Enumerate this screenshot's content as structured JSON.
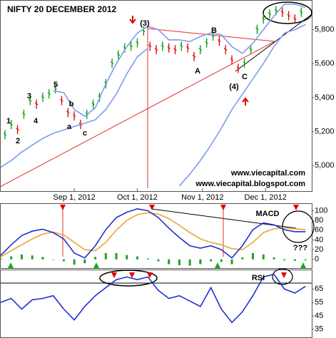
{
  "chart_data": [
    {
      "type": "stock",
      "title": "NIFTY 20 DECEMBER 2012",
      "xlim": [
        0,
        148
      ],
      "xticks": [
        {
          "value": 35,
          "label": "Sep 1, 2012"
        },
        {
          "value": 65,
          "label": "Oct 1, 2012"
        },
        {
          "value": 96,
          "label": "Nov 1, 2012"
        },
        {
          "value": 126,
          "label": "Dec 1, 2012"
        }
      ],
      "ylim": [
        4850,
        5966
      ],
      "yticks": [
        {
          "value": 5000,
          "label": "5,000"
        },
        {
          "value": 5200,
          "label": "5,200"
        },
        {
          "value": 5400,
          "label": "5,400"
        },
        {
          "value": 5600,
          "label": "5,600"
        },
        {
          "value": 5800,
          "label": "5,800"
        }
      ],
      "series": [
        {
          "up_color": "#00a000",
          "down_color": "#e00000",
          "x": [
            2,
            5,
            8,
            11,
            14,
            17,
            20,
            23,
            26,
            29,
            32,
            35,
            38,
            41,
            44,
            47,
            50,
            53,
            56,
            59,
            62,
            65,
            68,
            71,
            74,
            77,
            80,
            83,
            86,
            89,
            92,
            95,
            98,
            101,
            104,
            107,
            110,
            113,
            116,
            119,
            122,
            125,
            128,
            131,
            134,
            137,
            140,
            143
          ],
          "values": [
            5180,
            5240,
            5210,
            5300,
            5380,
            5360,
            5400,
            5420,
            5450,
            5380,
            5310,
            5290,
            5240,
            5300,
            5360,
            5400,
            5480,
            5600,
            5650,
            5690,
            5700,
            5720,
            5790,
            5700,
            5680,
            5700,
            5690,
            5680,
            5700,
            5690,
            5640,
            5680,
            5720,
            5760,
            5730,
            5680,
            5620,
            5570,
            5600,
            5680,
            5800,
            5860,
            5890,
            5910,
            5900,
            5880,
            5860,
            5900
          ]
        },
        {
          "color": "#7f9cf0",
          "x": [
            0,
            5,
            10,
            15,
            20,
            25,
            30,
            35,
            40,
            45,
            50,
            55,
            60,
            65,
            70,
            75,
            80,
            85,
            90,
            95,
            100,
            105,
            110,
            115,
            120,
            125,
            130,
            135,
            140,
            145
          ],
          "values": [
            null,
            null,
            null,
            null,
            null,
            5440,
            5430,
            5330,
            5290,
            5340,
            5480,
            5600,
            5700,
            5780,
            5820,
            5800,
            5740,
            5740,
            5730,
            5760,
            5780,
            5770,
            5700,
            5660,
            5720,
            5800,
            5880,
            5950,
            5950,
            5930
          ]
        },
        {
          "color": "#7f9cf0",
          "x": [
            0,
            5,
            10,
            15,
            20,
            25,
            30,
            35,
            40,
            45,
            50,
            55,
            60,
            65,
            70,
            75,
            80,
            85,
            90,
            95,
            100,
            105,
            110,
            115,
            120,
            125,
            130,
            135,
            140,
            145
          ],
          "values": [
            4990,
            5030,
            5080,
            5120,
            5160,
            5190,
            5210,
            5230,
            5250,
            5270,
            5330,
            5420,
            5540,
            5640,
            5690,
            null,
            null,
            4880,
            4950,
            5030,
            5120,
            5220,
            5330,
            5420,
            5510,
            5600,
            5700,
            5780,
            5800,
            5830
          ]
        }
      ],
      "annotations": [
        {
          "text": "(3)",
          "color": "#e00000"
        },
        {
          "text": "B",
          "color": "#e00000"
        },
        {
          "text": "A",
          "color": "#e00000"
        },
        {
          "text": "(4)",
          "color": "#e00000"
        },
        {
          "text": "C",
          "color": "#e00000"
        },
        {
          "text": "1",
          "color": "#e00000"
        },
        {
          "text": "2",
          "color": "#2050d0"
        },
        {
          "text": "3",
          "color": "#2050d0"
        },
        {
          "text": "4",
          "color": "#2050d0"
        },
        {
          "text": "5",
          "color": "#2050d0"
        },
        {
          "text": "a",
          "color": "#2050d0"
        },
        {
          "text": "b",
          "color": "#2050d0"
        },
        {
          "text": "c",
          "color": "#2050d0"
        },
        {
          "text": "www.viecapital.com",
          "color": "#000000"
        },
        {
          "text": "www.viecapital.blogspot.com",
          "color": "#000000"
        }
      ]
    },
    {
      "type": "macd",
      "xlim": [
        0,
        148
      ],
      "ylim": [
        -18,
        114
      ],
      "yticks": [
        0,
        20,
        40,
        60,
        80,
        100
      ],
      "x": [
        0,
        5,
        10,
        15,
        20,
        25,
        30,
        35,
        40,
        45,
        50,
        55,
        60,
        65,
        70,
        75,
        80,
        85,
        90,
        95,
        100,
        105,
        110,
        115,
        120,
        125,
        130,
        135,
        140,
        145
      ],
      "series": [
        {
          "style": "bar",
          "color": "#22a022",
          "values": [
            2,
            6,
            10,
            8,
            5,
            -1,
            -4,
            -11,
            -8,
            5,
            13,
            13,
            9,
            6,
            2,
            -4,
            -10,
            -12,
            -13,
            -10,
            -4,
            -5,
            -10,
            4,
            13,
            10,
            4,
            -2,
            -3,
            -2
          ]
        },
        {
          "style": "line",
          "color": "#e8a830",
          "values": [
            5,
            18,
            30,
            42,
            52,
            56,
            50,
            35,
            20,
            18,
            35,
            60,
            80,
            92,
            96,
            93,
            84,
            70,
            55,
            42,
            35,
            30,
            22,
            20,
            35,
            55,
            63,
            65,
            63,
            61
          ]
        },
        {
          "style": "line",
          "color": "#1f2fd0",
          "values": [
            8,
            30,
            49,
            58,
            62,
            55,
            42,
            13,
            3,
            28,
            61,
            86,
            97,
            104,
            100,
            86,
            64,
            45,
            28,
            23,
            28,
            20,
            3,
            28,
            61,
            75,
            71,
            61,
            57,
            57
          ]
        }
      ],
      "annotations": [
        {
          "text": "MACD",
          "color": "#000000"
        },
        {
          "text": "???",
          "color": "#000000"
        }
      ]
    },
    {
      "type": "line",
      "xlim": [
        0,
        148
      ],
      "ylim": [
        29,
        79
      ],
      "yticks": [
        35,
        45,
        55,
        65
      ],
      "x": [
        0,
        5,
        10,
        15,
        20,
        25,
        30,
        35,
        40,
        45,
        50,
        55,
        60,
        65,
        70,
        75,
        80,
        85,
        90,
        95,
        100,
        105,
        110,
        115,
        120,
        125,
        130,
        135,
        140,
        145
      ],
      "series": [
        {
          "style": "line",
          "color": "#1f2fd0",
          "values": [
            55,
            58,
            50,
            57,
            58,
            60,
            50,
            42,
            52,
            60,
            66,
            72,
            74,
            72,
            74,
            64,
            58,
            60,
            56,
            52,
            66,
            50,
            40,
            48,
            60,
            74,
            76,
            65,
            62,
            67
          ]
        }
      ],
      "annotations": [
        {
          "text": "RSI",
          "color": "#000000"
        }
      ]
    }
  ]
}
